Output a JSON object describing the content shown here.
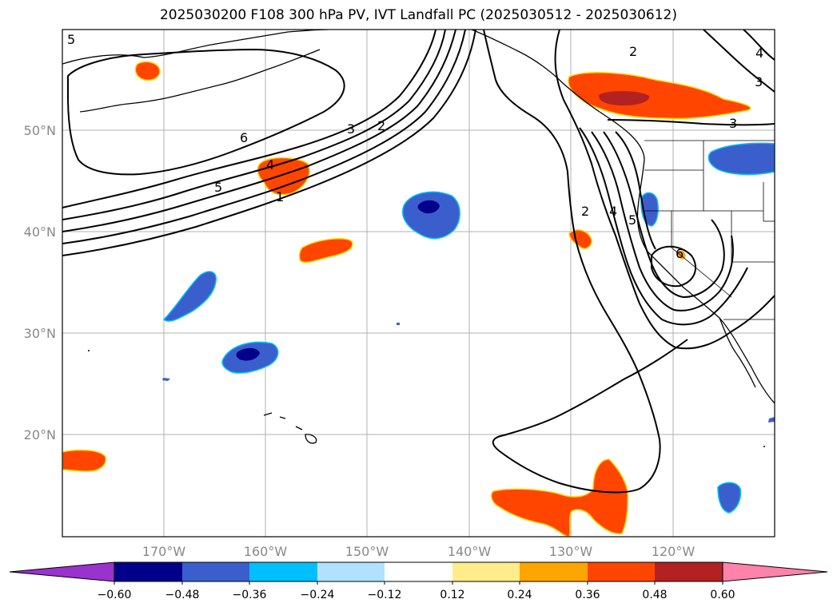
{
  "title": "2025030200 F108 300 hPa PV, IVT Landfall PC (2025030512 - 2025030612)",
  "latitude_labels": [
    "50°N",
    "40°N",
    "30°N",
    "20°N"
  ],
  "longitude_labels": [
    "170°W",
    "160°W",
    "150°W",
    "140°W",
    "130°W",
    "120°W"
  ],
  "contour_labels": [
    "5",
    "6",
    "5",
    "4",
    "1",
    "3",
    "2",
    "2",
    "4",
    "5",
    "6",
    "2",
    "4",
    "3",
    "3"
  ],
  "colorbar": {
    "tick_labels": [
      "−0.60",
      "−0.48",
      "−0.36",
      "−0.24",
      "−0.12",
      "0.12",
      "0.24",
      "0.36",
      "0.48",
      "0.60"
    ],
    "colors": [
      "#9a32cd",
      "#00008b",
      "#3a5fcd",
      "#00bfff",
      "#b0e2ff",
      "#ffffff",
      "#ffec8b",
      "#ffa500",
      "#ff4500",
      "#b22222",
      "#ff82ab"
    ]
  },
  "colors": {
    "positive_main": "#ff4500",
    "positive_strong": "#b22222",
    "negative_main": "#3a5fcd",
    "negative_strong": "#00008b",
    "grid": "#b0b0b0",
    "contour": "#000000"
  }
}
